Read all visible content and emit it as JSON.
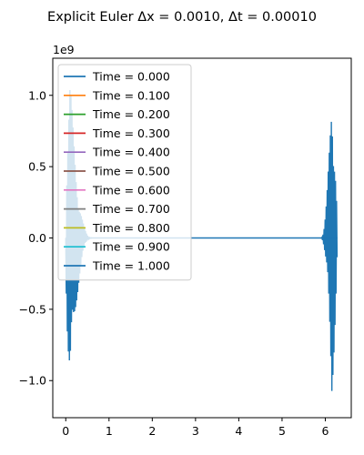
{
  "chart_data": {
    "type": "line",
    "title": "Explicit Euler Δx = 0.0010, Δt = 0.00010",
    "xlabel": "",
    "ylabel": "",
    "y_offset_label": "1e9",
    "xlim": [
      -0.3,
      6.6
    ],
    "ylim": [
      -1.26,
      1.26
    ],
    "x_ticks": [
      0,
      1,
      2,
      3,
      4,
      5,
      6
    ],
    "x_tick_labels": [
      "0",
      "1",
      "2",
      "3",
      "4",
      "5",
      "6"
    ],
    "y_ticks": [
      -1.0,
      -0.5,
      0.0,
      0.5,
      1.0
    ],
    "y_tick_labels": [
      "−1.0",
      "−0.5",
      "0.0",
      "0.5",
      "1.0"
    ],
    "grid": false,
    "legend_position": "upper-left",
    "series": [
      {
        "name": "Time = 0.000",
        "color": "#1f77b4"
      },
      {
        "name": "Time = 0.100",
        "color": "#ff7f0e"
      },
      {
        "name": "Time = 0.200",
        "color": "#2ca02c"
      },
      {
        "name": "Time = 0.300",
        "color": "#d62728"
      },
      {
        "name": "Time = 0.400",
        "color": "#9467bd"
      },
      {
        "name": "Time = 0.500",
        "color": "#8c564b"
      },
      {
        "name": "Time = 0.600",
        "color": "#e377c2"
      },
      {
        "name": "Time = 0.700",
        "color": "#7f7f7f"
      },
      {
        "name": "Time = 0.800",
        "color": "#bcbd22"
      },
      {
        "name": "Time = 0.900",
        "color": "#17becf"
      },
      {
        "name": "Time = 1.000",
        "color": "#1f77b4"
      }
    ],
    "oscillation_bursts": [
      {
        "x_start": 0.0,
        "x_peak": 0.1,
        "x_end": 0.6,
        "peak_amplitude": 1.13
      },
      {
        "x_start": 5.9,
        "x_peak": 6.15,
        "x_end": 6.28,
        "peak_amplitude": 1.13
      }
    ],
    "baseline": {
      "x_start": 0.0,
      "x_end": 6.28,
      "y": 0.0
    }
  }
}
